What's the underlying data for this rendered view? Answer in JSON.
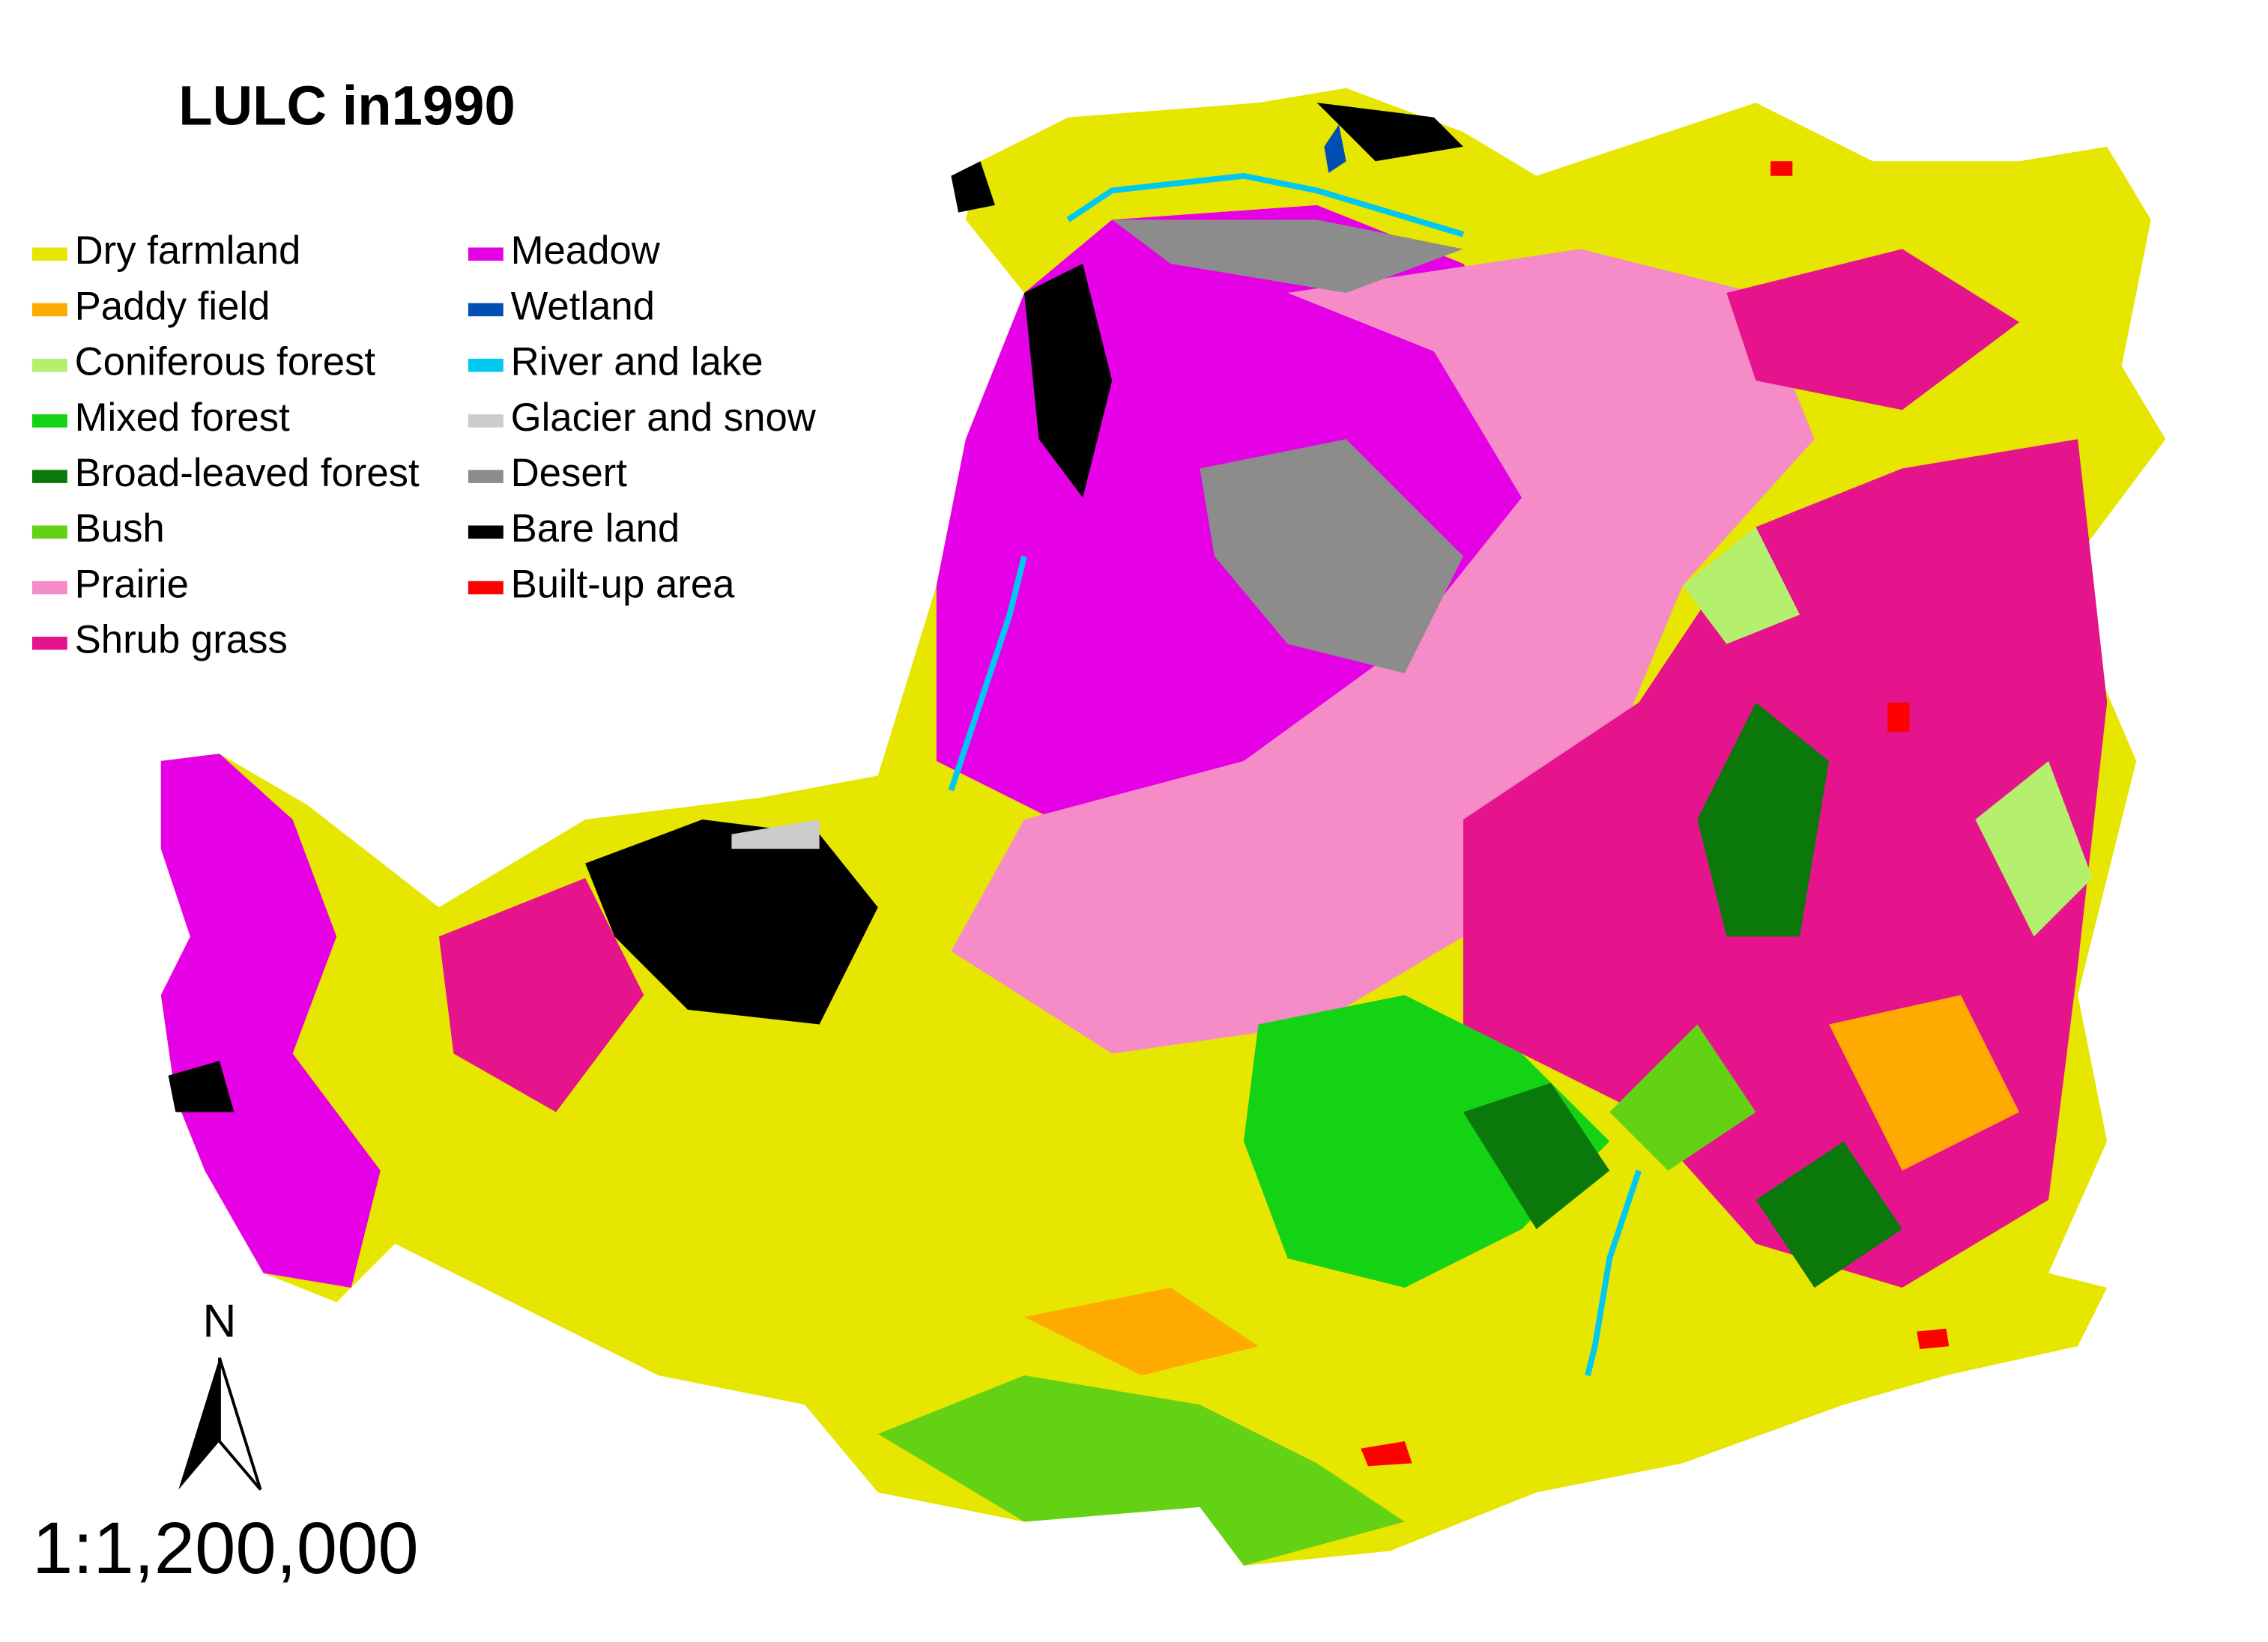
{
  "title": "LULC in1990",
  "legend": {
    "items": [
      {
        "label": "Dry farmland",
        "color": "#e6e600"
      },
      {
        "label": "Paddy field",
        "color": "#ffaa00"
      },
      {
        "label": "Coniferous forest",
        "color": "#b4f06e"
      },
      {
        "label": "Mixed forest",
        "color": "#14d214"
      },
      {
        "label": "Broad-leaved forest",
        "color": "#0a780a"
      },
      {
        "label": "Bush",
        "color": "#64d214"
      },
      {
        "label": "Prairie",
        "color": "#f58cc8"
      },
      {
        "label": "Shrub grass",
        "color": "#e6148c"
      },
      {
        "label": "Meadow",
        "color": "#e600e6"
      },
      {
        "label": "Wetland",
        "color": "#0050b4"
      },
      {
        "label": "River and lake",
        "color": "#00c8f0"
      },
      {
        "label": "Glacier and snow",
        "color": "#cccccc"
      },
      {
        "label": "Desert",
        "color": "#8c8c8c"
      },
      {
        "label": "Bare land",
        "color": "#000000"
      },
      {
        "label": "Built-up area",
        "color": "#ff0000"
      }
    ]
  },
  "north_arrow": "N",
  "scale": "1:1,200,000"
}
